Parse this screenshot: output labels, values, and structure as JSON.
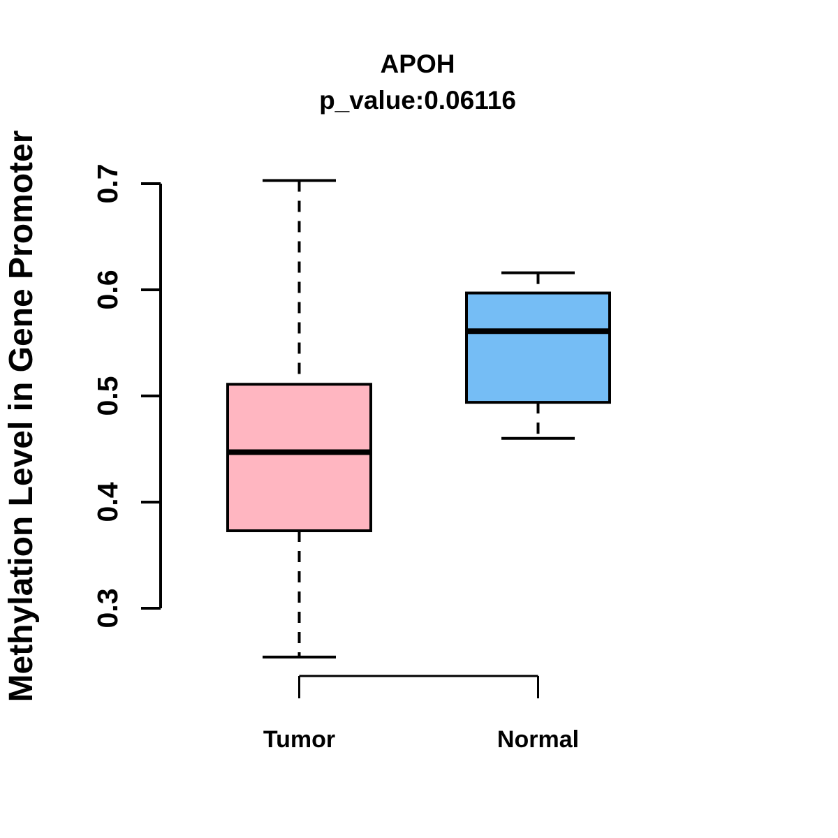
{
  "chart_data": {
    "type": "boxplot",
    "title": "APOH",
    "subtitle": "p_value:0.06116",
    "ylabel": "Methylation Level in Gene Promoter",
    "xlabel": "",
    "categories": [
      "Tumor",
      "Normal"
    ],
    "y_ticks": [
      "0.3",
      "0.4",
      "0.5",
      "0.6",
      "0.7"
    ],
    "ylim": [
      0.3,
      0.7
    ],
    "grid": false,
    "legend": "none",
    "series": [
      {
        "name": "Tumor",
        "fill_color": "#FFB6C1",
        "stroke_color": "#000000",
        "lower_whisker": 0.254,
        "q1": 0.373,
        "median": 0.447,
        "q3": 0.511,
        "upper_whisker": 0.703
      },
      {
        "name": "Normal",
        "fill_color": "#75BDF5",
        "stroke_color": "#000000",
        "lower_whisker": 0.46,
        "q1": 0.494,
        "median": 0.561,
        "q3": 0.597,
        "upper_whisker": 0.616
      }
    ],
    "colors": {
      "background": "#FFFFFF",
      "axis": "#000000",
      "text": "#000000"
    }
  }
}
